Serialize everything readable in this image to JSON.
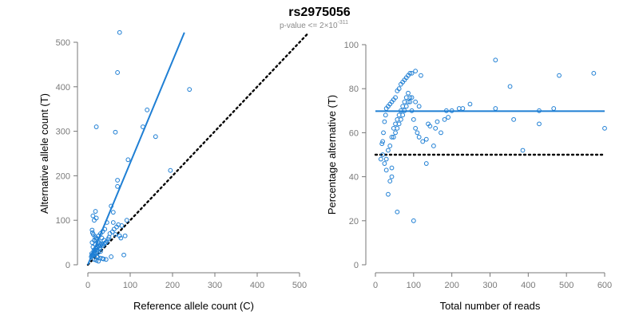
{
  "title": "rs2975056",
  "subtitle_prefix": "p-value <= 2×10",
  "subtitle_exponent": "-311",
  "colors": {
    "points": "#1f7fd4",
    "fit": "#1f7fd4",
    "reference": "#000000",
    "axis": "#777777"
  },
  "chart_data": [
    {
      "type": "scatter",
      "xlabel": "Reference allele count (C)",
      "ylabel": "Alternative allele count (T)",
      "xlim": [
        0,
        500
      ],
      "ylim": [
        0,
        500
      ],
      "xticks": [
        "0",
        "100",
        "200",
        "300",
        "400",
        "500"
      ],
      "yticks": [
        "0",
        "100",
        "200",
        "300",
        "400",
        "500"
      ],
      "x": [
        75,
        70,
        240,
        140,
        160,
        130,
        65,
        20,
        95,
        195,
        70,
        70,
        55,
        60,
        45,
        40,
        35,
        30,
        25,
        20,
        15,
        10,
        18,
        12,
        22,
        28,
        33,
        38,
        42,
        48,
        50,
        60,
        80,
        85,
        75,
        55,
        65,
        30,
        25,
        20,
        15,
        12,
        10,
        8,
        14,
        16,
        18,
        22,
        26,
        30,
        35,
        40,
        45,
        12,
        15,
        18,
        20,
        10,
        11,
        13,
        17,
        19,
        24,
        27,
        32,
        36,
        28,
        22,
        16,
        14,
        9,
        11,
        13,
        21,
        23,
        29,
        34,
        37,
        43,
        52,
        58,
        62,
        68,
        72,
        78,
        88,
        92,
        15,
        20,
        25
      ],
      "y": [
        522,
        432,
        394,
        348,
        288,
        310,
        298,
        310,
        236,
        212,
        190,
        176,
        132,
        118,
        95,
        80,
        75,
        70,
        65,
        60,
        55,
        50,
        45,
        40,
        38,
        35,
        60,
        55,
        50,
        58,
        62,
        95,
        88,
        22,
        65,
        18,
        68,
        30,
        28,
        26,
        24,
        22,
        20,
        18,
        32,
        34,
        36,
        40,
        42,
        44,
        46,
        48,
        52,
        110,
        100,
        120,
        105,
        78,
        72,
        68,
        63,
        57,
        53,
        49,
        47,
        43,
        38,
        33,
        29,
        27,
        25,
        23,
        21,
        19,
        17,
        15,
        14,
        13,
        12,
        70,
        74,
        80,
        85,
        90,
        60,
        65,
        100,
        12,
        10,
        8
      ],
      "fit_line": {
        "x": [
          0,
          228
        ],
        "y": [
          0,
          522
        ]
      },
      "reference_line": {
        "x": [
          0,
          520
        ],
        "y": [
          0,
          520
        ]
      }
    },
    {
      "type": "scatter",
      "xlabel": "Total number of reads",
      "ylabel": "Percentage alternative (T)",
      "xlim": [
        0,
        630
      ],
      "ylim": [
        0,
        100
      ],
      "xticks": [
        "0",
        "100",
        "200",
        "300",
        "400",
        "500",
        "600"
      ],
      "yticks": [
        "0",
        "20",
        "40",
        "60",
        "80",
        "100"
      ],
      "x": [
        330,
        600,
        505,
        370,
        490,
        450,
        260,
        230,
        195,
        165,
        145,
        125,
        110,
        100,
        95,
        90,
        85,
        80,
        75,
        70,
        65,
        60,
        55,
        50,
        45,
        40,
        35,
        30,
        28,
        25,
        22,
        20,
        18,
        15,
        35,
        40,
        45,
        50,
        55,
        60,
        65,
        70,
        75,
        80,
        85,
        90,
        95,
        100,
        105,
        110,
        115,
        120,
        130,
        140,
        150,
        160,
        170,
        180,
        190,
        200,
        210,
        240,
        330,
        380,
        405,
        450,
        630,
        60,
        105,
        140,
        45,
        40,
        35,
        30,
        50,
        55,
        60,
        65,
        70,
        75,
        80,
        85,
        90,
        95,
        100,
        110,
        120,
        30,
        25,
        20,
        45
      ],
      "y": [
        93,
        87,
        86,
        81,
        71,
        70,
        73,
        71,
        70,
        62,
        64,
        86,
        88,
        87,
        87,
        86,
        85,
        84,
        83,
        82,
        80,
        79,
        76,
        75,
        74,
        73,
        72,
        71,
        68,
        65,
        60,
        56,
        55,
        48,
        52,
        54,
        58,
        62,
        64,
        66,
        68,
        70,
        72,
        74,
        76,
        78,
        74,
        70,
        66,
        62,
        60,
        58,
        56,
        57,
        63,
        54,
        65,
        60,
        66,
        67,
        70,
        71,
        71,
        66,
        52,
        64,
        62,
        24,
        20,
        46,
        40,
        38,
        32,
        43,
        58,
        60,
        62,
        64,
        66,
        68,
        70,
        72,
        74,
        76,
        76,
        74,
        72,
        48,
        46,
        50,
        44
      ],
      "fit_line": {
        "x": [
          0,
          630
        ],
        "y": [
          69.8,
          69.8
        ]
      },
      "reference_line": {
        "x": [
          0,
          630
        ],
        "y": [
          50,
          50
        ]
      }
    }
  ]
}
